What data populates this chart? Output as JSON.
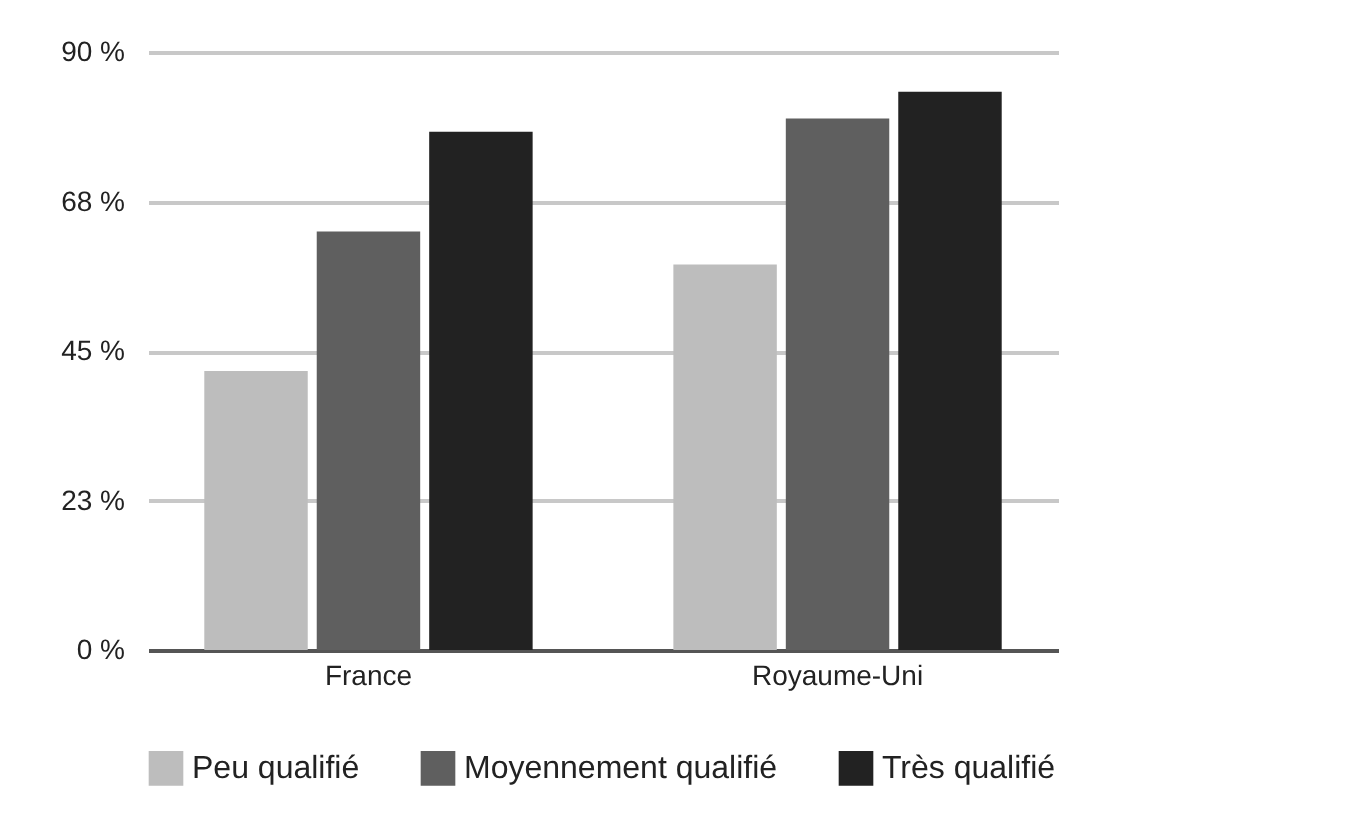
{
  "chart_data": {
    "type": "bar",
    "categories": [
      "France",
      "Royaume-Uni"
    ],
    "series": [
      {
        "name": "Peu qualifié",
        "color": "#bdbdbd",
        "values": [
          42,
          58
        ]
      },
      {
        "name": "Moyennement qualifié",
        "color": "#5f5f5f",
        "values": [
          63,
          80
        ]
      },
      {
        "name": "Très qualifié",
        "color": "#222222",
        "values": [
          78,
          84
        ]
      }
    ],
    "ylim": [
      0,
      90
    ],
    "yticks": [
      {
        "value": 0,
        "label": "0 %"
      },
      {
        "value": 22.5,
        "label": "23 %"
      },
      {
        "value": 45,
        "label": "45 %"
      },
      {
        "value": 67.5,
        "label": "68 %"
      },
      {
        "value": 90,
        "label": "90 %"
      }
    ],
    "grid": "y",
    "legend": "bottom"
  }
}
